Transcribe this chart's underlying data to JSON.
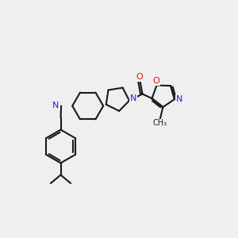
{
  "bg_color": "#efefef",
  "bond_color": "#1a1a1a",
  "N_color": "#2020ee",
  "O_color": "#dd1111",
  "lw": 1.5,
  "fs": 8.0,
  "fs_small": 7.0,
  "xlim": [
    0,
    10
  ],
  "ylim": [
    0,
    10
  ]
}
